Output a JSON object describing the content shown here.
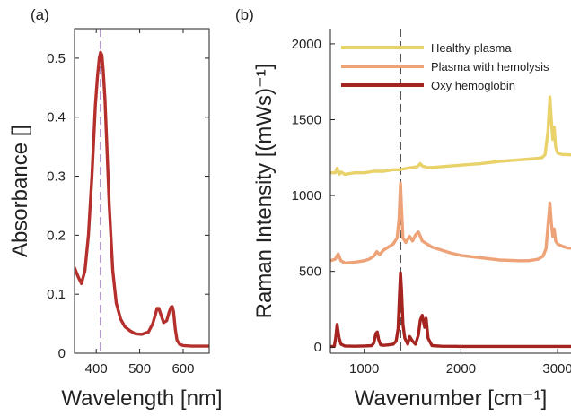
{
  "chart_data": [
    {
      "type": "line",
      "panel_label": "(a)",
      "xlabel": "Wavelength [nm]",
      "ylabel": "Absorbance []",
      "xlim": [
        350,
        660
      ],
      "ylim": [
        0,
        0.55
      ],
      "xticks": [
        400,
        500,
        600
      ],
      "yticks": [
        0,
        0.1,
        0.2,
        0.3,
        0.4,
        0.5
      ],
      "ytick_labels": [
        "0",
        "0.1",
        "0.2",
        "0.3",
        "0.4",
        "0.5"
      ],
      "vline": {
        "x": 410,
        "color": "#7a4bb0",
        "style": "dashed"
      },
      "series": [
        {
          "color": "#b5302c",
          "x": [
            350,
            358,
            366,
            374,
            382,
            390,
            398,
            403,
            407,
            410,
            413,
            416,
            420,
            425,
            430,
            438,
            446,
            456,
            466,
            478,
            490,
            505,
            520,
            530,
            536,
            540,
            544,
            549,
            555,
            562,
            568,
            572,
            575,
            578,
            582,
            586,
            592,
            600,
            620,
            640,
            660
          ],
          "y": [
            0.145,
            0.13,
            0.118,
            0.14,
            0.2,
            0.3,
            0.42,
            0.47,
            0.5,
            0.51,
            0.505,
            0.48,
            0.43,
            0.34,
            0.25,
            0.14,
            0.085,
            0.058,
            0.045,
            0.038,
            0.033,
            0.032,
            0.036,
            0.05,
            0.065,
            0.076,
            0.076,
            0.065,
            0.052,
            0.055,
            0.07,
            0.078,
            0.079,
            0.07,
            0.04,
            0.022,
            0.015,
            0.013,
            0.012,
            0.012,
            0.012
          ]
        }
      ]
    },
    {
      "type": "line",
      "panel_label": "(b)",
      "xlabel": "Wavenumber [cm⁻¹]",
      "ylabel": "Raman Intensity [(mWs)⁻¹]",
      "xlim": [
        650,
        3250
      ],
      "ylim": [
        -40,
        2100
      ],
      "xticks": [
        1000,
        2000,
        3000
      ],
      "yticks": [
        0,
        500,
        1000,
        1500,
        2000
      ],
      "vline": {
        "x": 1378,
        "color": "#555555",
        "style": "dashed"
      },
      "legend": {
        "position": "top"
      },
      "series": [
        {
          "name": "Healthy plasma",
          "color": "#e9d26a",
          "x": [
            650,
            700,
            720,
            740,
            760,
            800,
            900,
            1000,
            1100,
            1200,
            1300,
            1370,
            1400,
            1450,
            1500,
            1550,
            1580,
            1600,
            1650,
            1700,
            1800,
            2000,
            2200,
            2400,
            2600,
            2700,
            2800,
            2840,
            2870,
            2900,
            2920,
            2935,
            2950,
            2965,
            2980,
            3000,
            3050,
            3100,
            3250
          ],
          "y": [
            1150,
            1150,
            1180,
            1140,
            1155,
            1140,
            1150,
            1150,
            1160,
            1160,
            1170,
            1170,
            1175,
            1180,
            1185,
            1190,
            1210,
            1195,
            1185,
            1185,
            1190,
            1200,
            1210,
            1225,
            1235,
            1240,
            1245,
            1250,
            1270,
            1420,
            1650,
            1500,
            1370,
            1450,
            1320,
            1280,
            1270,
            1270,
            1260
          ]
        },
        {
          "name": "Plasma with hemolysis",
          "color": "#eea278",
          "x": [
            650,
            700,
            730,
            760,
            800,
            900,
            1000,
            1050,
            1100,
            1130,
            1160,
            1200,
            1250,
            1300,
            1340,
            1360,
            1375,
            1385,
            1400,
            1430,
            1470,
            1500,
            1530,
            1560,
            1600,
            1650,
            1700,
            1800,
            1900,
            2000,
            2200,
            2400,
            2600,
            2700,
            2800,
            2850,
            2880,
            2900,
            2920,
            2935,
            2950,
            2965,
            2980,
            3000,
            3050,
            3100,
            3250
          ],
          "y": [
            570,
            580,
            615,
            570,
            555,
            560,
            570,
            580,
            600,
            630,
            610,
            640,
            660,
            680,
            720,
            850,
            1080,
            920,
            720,
            690,
            730,
            700,
            740,
            760,
            700,
            680,
            660,
            640,
            620,
            605,
            590,
            575,
            570,
            570,
            580,
            600,
            650,
            800,
            950,
            820,
            730,
            780,
            700,
            680,
            665,
            655,
            645
          ]
        },
        {
          "name": "Oxy hemoglobin",
          "color": "#a5241f",
          "x": [
            650,
            690,
            705,
            720,
            740,
            760,
            800,
            900,
            1000,
            1080,
            1100,
            1120,
            1135,
            1150,
            1170,
            1200,
            1250,
            1300,
            1330,
            1350,
            1365,
            1375,
            1385,
            1400,
            1420,
            1450,
            1470,
            1500,
            1530,
            1560,
            1580,
            1600,
            1625,
            1640,
            1660,
            1700,
            1800,
            2000,
            2500,
            3000,
            3250
          ],
          "y": [
            5,
            5,
            60,
            150,
            60,
            20,
            8,
            6,
            8,
            10,
            30,
            90,
            100,
            50,
            15,
            12,
            15,
            20,
            40,
            120,
            350,
            490,
            380,
            150,
            60,
            20,
            70,
            40,
            20,
            80,
            180,
            210,
            130,
            190,
            60,
            10,
            6,
            5,
            5,
            5,
            5
          ]
        }
      ]
    }
  ]
}
